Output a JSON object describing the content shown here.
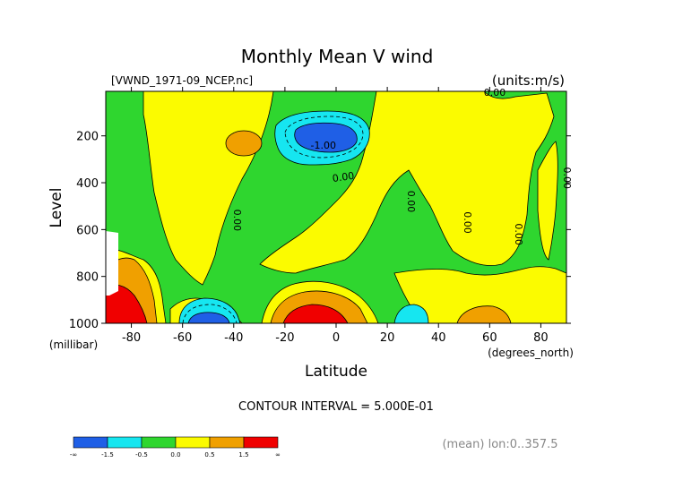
{
  "chart_data": {
    "type": "heatmap",
    "title": "Monthly Mean V wind",
    "file_label": "[VWND_1971-09_NCEP.nc]",
    "units_label": "(units:m/s)",
    "xlabel": "Latitude",
    "x_units": "(degrees_north)",
    "ylabel": "Level",
    "y_units": "(millibar)",
    "xlim": [
      -90,
      90
    ],
    "ylim": [
      1000,
      10
    ],
    "x_ticks": [
      "-80",
      "-60",
      "-40",
      "-20",
      "0",
      "20",
      "40",
      "60",
      "80"
    ],
    "x_tick_values": [
      -80,
      -60,
      -40,
      -20,
      0,
      20,
      40,
      60,
      80
    ],
    "y_ticks": [
      "200",
      "400",
      "600",
      "800",
      "1000"
    ],
    "y_tick_values": [
      200,
      400,
      600,
      800,
      1000
    ],
    "contour_interval": "CONTOUR INTERVAL = 5.000E-01",
    "footer_note": "(mean) lon:0..357.5",
    "contour_labels": [
      {
        "text": "0.00",
        "x": 62,
        "y": 30
      },
      {
        "text": "-1.00",
        "x": -5,
        "y": 255
      },
      {
        "text": "0.00",
        "x": 3,
        "y": 390
      },
      {
        "text": "0.00",
        "x": -40,
        "y": 560
      },
      {
        "text": "0.00",
        "x": 28,
        "y": 480
      },
      {
        "text": "0.00",
        "x": 50,
        "y": 570
      },
      {
        "text": "0.00",
        "x": 70,
        "y": 620
      },
      {
        "text": "0.00",
        "x": 89,
        "y": 380
      }
    ],
    "colorbar": {
      "colors": [
        "#1f5fe6",
        "#16e6f0",
        "#2fd62f",
        "#fbfb00",
        "#f0a000",
        "#f00000"
      ],
      "labels": [
        "-∞",
        "-1.5",
        "-0.5",
        "0.0",
        "0.5",
        "1.5",
        "∞"
      ]
    },
    "fill_colors": {
      "neg_strong": "#1f5fe6",
      "neg": "#16e6f0",
      "near_zero": "#2fd62f",
      "pos": "#fbfb00",
      "pos_mid": "#f0a000",
      "pos_strong": "#f00000"
    }
  }
}
